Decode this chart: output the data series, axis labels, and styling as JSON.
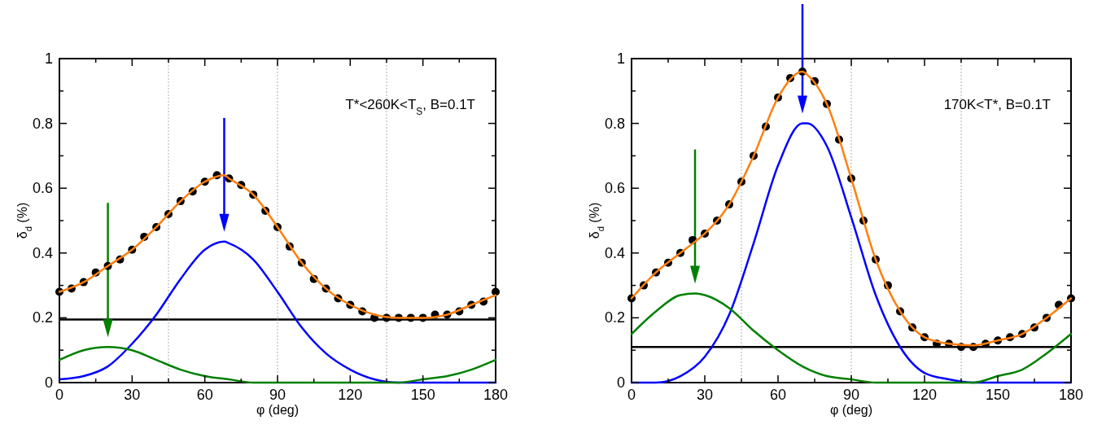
{
  "chart_data": [
    {
      "type": "line",
      "xlabel": "φ (deg)",
      "ylabel": "δ$_{d}$ (%)",
      "annotations": [
        "T*<260K<T$_{S}$, B=0.1T"
      ],
      "xlim": [
        0,
        180
      ],
      "ylim": [
        0,
        1
      ],
      "xticks": [
        0,
        {
          "value": 15,
          "label": null
        },
        30,
        {
          "value": 45,
          "label": null
        },
        60,
        {
          "value": 75,
          "label": null
        },
        90,
        {
          "value": 105,
          "label": null
        },
        120,
        {
          "value": 135,
          "label": null
        },
        150,
        {
          "value": 165,
          "label": null
        },
        180
      ],
      "yticks": [
        0,
        {
          "value": 0.1,
          "label": null
        },
        0.2,
        {
          "value": 0.3,
          "label": null
        },
        0.4,
        {
          "value": 0.5,
          "label": null
        },
        0.6,
        {
          "value": 0.7,
          "label": null
        },
        0.8,
        {
          "value": 0.9,
          "label": null
        },
        1
      ],
      "grid": false,
      "ref_lines": [
        {
          "axis": "y",
          "value": 0.195,
          "color": "#000000",
          "line_style": "solid"
        },
        {
          "axis": "x",
          "value": 45,
          "color": "#999999",
          "line_style": "dotted"
        },
        {
          "axis": "x",
          "value": 90,
          "color": "#999999",
          "line_style": "dotted"
        },
        {
          "axis": "x",
          "value": 135,
          "color": "#999999",
          "line_style": "dotted"
        }
      ],
      "series": [
        {
          "type": "scatter",
          "marker": "circle",
          "color": "#000000",
          "x": [
            0,
            5,
            10,
            15,
            20,
            25,
            30,
            35,
            40,
            45,
            50,
            55,
            60,
            65,
            70,
            75,
            80,
            85,
            90,
            95,
            100,
            105,
            110,
            115,
            120,
            125,
            130,
            135,
            140,
            145,
            150,
            155,
            160,
            165,
            170,
            175,
            180
          ],
          "values": [
            0.28,
            0.29,
            0.31,
            0.34,
            0.36,
            0.38,
            0.41,
            0.45,
            0.48,
            0.52,
            0.56,
            0.59,
            0.62,
            0.64,
            0.63,
            0.61,
            0.58,
            0.53,
            0.48,
            0.42,
            0.37,
            0.32,
            0.29,
            0.26,
            0.24,
            0.22,
            0.2,
            0.2,
            0.2,
            0.2,
            0.2,
            0.21,
            0.21,
            0.22,
            0.24,
            0.25,
            0.28
          ]
        },
        {
          "type": "line",
          "color": "#ff7f0e",
          "x": [
            0,
            10,
            20,
            30,
            40,
            50,
            60,
            68,
            70,
            80,
            90,
            100,
            110,
            120,
            130,
            140,
            150,
            160,
            170,
            180
          ],
          "values": [
            0.28,
            0.31,
            0.36,
            0.41,
            0.48,
            0.56,
            0.62,
            0.64,
            0.63,
            0.58,
            0.48,
            0.37,
            0.29,
            0.24,
            0.21,
            0.2,
            0.2,
            0.21,
            0.24,
            0.27
          ]
        },
        {
          "type": "line",
          "color": "#0000ff",
          "x": [
            0,
            10,
            20,
            30,
            40,
            50,
            60,
            68,
            70,
            80,
            90,
            100,
            110,
            120,
            130,
            140,
            150,
            160,
            170,
            180
          ],
          "values": [
            0.01,
            0.02,
            0.05,
            0.12,
            0.21,
            0.32,
            0.41,
            0.435,
            0.43,
            0.38,
            0.28,
            0.17,
            0.09,
            0.04,
            0.01,
            0,
            0,
            0,
            0,
            0
          ]
        },
        {
          "type": "line",
          "color": "#008000",
          "x": [
            0,
            10,
            20,
            30,
            40,
            50,
            60,
            70,
            80,
            90,
            100,
            110,
            120,
            130,
            140,
            150,
            160,
            170,
            180
          ],
          "values": [
            0.07,
            0.1,
            0.11,
            0.1,
            0.07,
            0.04,
            0.02,
            0.01,
            0,
            0,
            0,
            0,
            0,
            0,
            0,
            0.01,
            0.02,
            0.04,
            0.07
          ]
        }
      ]
    },
    {
      "type": "line",
      "xlabel": "φ (deg)",
      "ylabel": "δ$_{d}$ (%)",
      "annotations": [
        "170K<T*, B=0.1T"
      ],
      "xlim": [
        0,
        180
      ],
      "ylim": [
        0,
        1
      ],
      "xticks": [
        0,
        {
          "value": 15,
          "label": null
        },
        30,
        {
          "value": 45,
          "label": null
        },
        60,
        {
          "value": 75,
          "label": null
        },
        90,
        {
          "value": 105,
          "label": null
        },
        120,
        {
          "value": 135,
          "label": null
        },
        150,
        {
          "value": 165,
          "label": null
        },
        180
      ],
      "yticks": [
        0,
        {
          "value": 0.1,
          "label": null
        },
        0.2,
        {
          "value": 0.3,
          "label": null
        },
        0.4,
        {
          "value": 0.5,
          "label": null
        },
        0.6,
        {
          "value": 0.7,
          "label": null
        },
        0.8,
        {
          "value": 0.9,
          "label": null
        },
        1
      ],
      "grid": false,
      "ref_lines": [
        {
          "axis": "y",
          "value": 0.11,
          "color": "#000000",
          "line_style": "solid"
        },
        {
          "axis": "x",
          "value": 45,
          "color": "#999999",
          "line_style": "dotted"
        },
        {
          "axis": "x",
          "value": 90,
          "color": "#999999",
          "line_style": "dotted"
        },
        {
          "axis": "x",
          "value": 135,
          "color": "#999999",
          "line_style": "dotted"
        }
      ],
      "series": [
        {
          "type": "scatter",
          "marker": "circle",
          "color": "#000000",
          "x": [
            0,
            5,
            10,
            15,
            20,
            25,
            30,
            35,
            40,
            45,
            50,
            55,
            60,
            65,
            70,
            75,
            80,
            85,
            90,
            95,
            100,
            105,
            110,
            115,
            120,
            125,
            130,
            135,
            140,
            145,
            150,
            155,
            160,
            165,
            170,
            175,
            180
          ],
          "values": [
            0.26,
            0.3,
            0.34,
            0.37,
            0.4,
            0.44,
            0.46,
            0.5,
            0.55,
            0.62,
            0.7,
            0.79,
            0.88,
            0.94,
            0.96,
            0.93,
            0.86,
            0.75,
            0.63,
            0.5,
            0.38,
            0.3,
            0.22,
            0.17,
            0.14,
            0.12,
            0.12,
            0.11,
            0.11,
            0.12,
            0.13,
            0.14,
            0.15,
            0.17,
            0.2,
            0.24,
            0.26
          ]
        },
        {
          "type": "line",
          "color": "#ff7f0e",
          "x": [
            0,
            10,
            20,
            26,
            30,
            40,
            50,
            60,
            70,
            72,
            80,
            90,
            100,
            110,
            120,
            130,
            140,
            150,
            160,
            170,
            180
          ],
          "values": [
            0.26,
            0.34,
            0.4,
            0.435,
            0.46,
            0.55,
            0.7,
            0.88,
            0.96,
            0.95,
            0.86,
            0.63,
            0.38,
            0.22,
            0.14,
            0.12,
            0.115,
            0.13,
            0.15,
            0.2,
            0.26
          ]
        },
        {
          "type": "line",
          "color": "#0000ff",
          "x": [
            0,
            10,
            20,
            30,
            40,
            50,
            60,
            70,
            72,
            80,
            90,
            100,
            110,
            120,
            130,
            140,
            150,
            160,
            170,
            180
          ],
          "values": [
            0,
            0,
            0.02,
            0.08,
            0.21,
            0.43,
            0.67,
            0.8,
            0.8,
            0.73,
            0.51,
            0.27,
            0.11,
            0.03,
            0.01,
            0,
            0,
            0,
            0,
            0
          ]
        },
        {
          "type": "line",
          "color": "#008000",
          "x": [
            0,
            10,
            20,
            26,
            30,
            40,
            50,
            60,
            70,
            80,
            90,
            100,
            110,
            120,
            130,
            140,
            150,
            160,
            170,
            180
          ],
          "values": [
            0.15,
            0.22,
            0.27,
            0.275,
            0.27,
            0.23,
            0.16,
            0.1,
            0.05,
            0.02,
            0.01,
            0,
            0,
            0,
            0,
            0,
            0.02,
            0.04,
            0.09,
            0.15
          ]
        }
      ]
    }
  ]
}
